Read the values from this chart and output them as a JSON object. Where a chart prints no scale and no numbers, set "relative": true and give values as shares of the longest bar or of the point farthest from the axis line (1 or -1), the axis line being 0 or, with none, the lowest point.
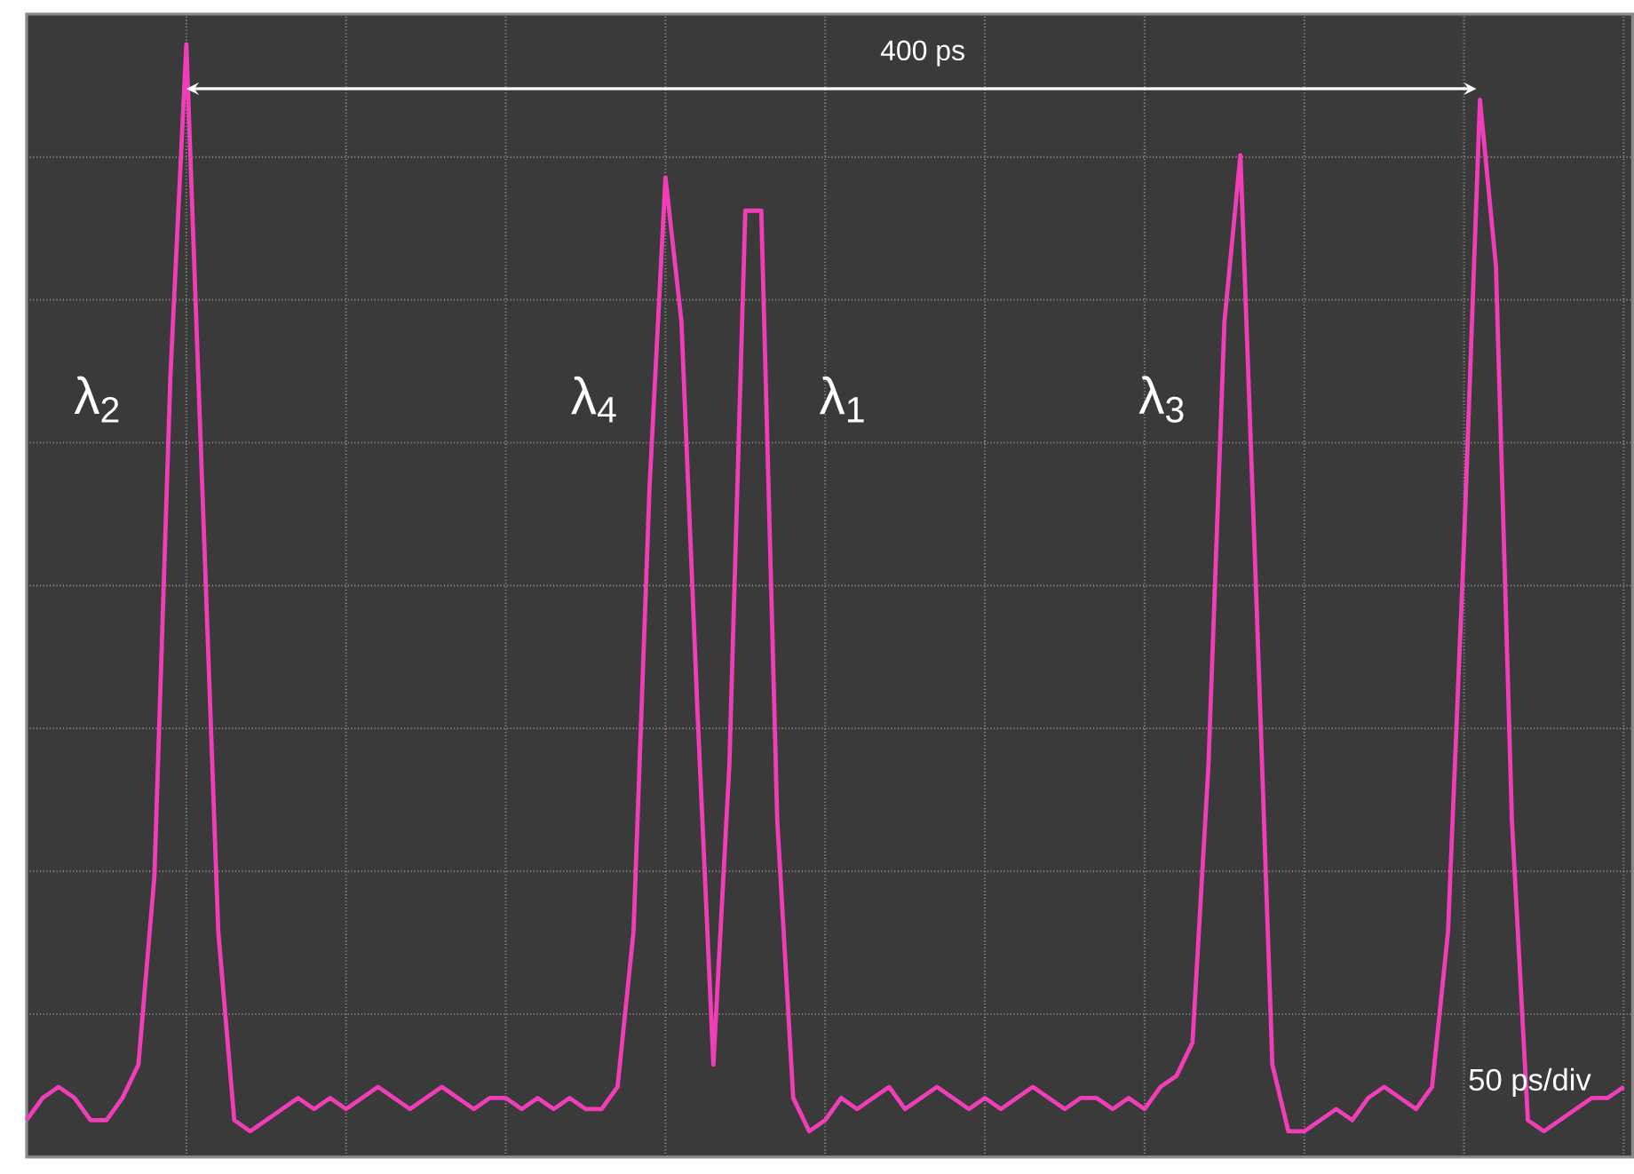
{
  "chart_data": {
    "type": "line",
    "relative": true,
    "categories": [
      null,
      null,
      null,
      null,
      null,
      null,
      null,
      null,
      null,
      null,
      null,
      null,
      null,
      null,
      null,
      null,
      null,
      null,
      null,
      null,
      null,
      null,
      null,
      null,
      null,
      null,
      null,
      null,
      null,
      null,
      null,
      null,
      null,
      null,
      null,
      null,
      null,
      null,
      null,
      null,
      null,
      null,
      null,
      null,
      null,
      null,
      null,
      null,
      null,
      null,
      null,
      null,
      null,
      null,
      null,
      null,
      null,
      null,
      null,
      null,
      null,
      null,
      null,
      null,
      null,
      null,
      null,
      null,
      null,
      null,
      null,
      null,
      null,
      null,
      null,
      null,
      null,
      null,
      null,
      null,
      null,
      null,
      null,
      null,
      null,
      null,
      null,
      null,
      null,
      null,
      null,
      null,
      null,
      null,
      null,
      null,
      null,
      null,
      null,
      null,
      null
    ],
    "series": [
      {
        "color": "#f23db8",
        "values": [
          0.03,
          0.05,
          0.06,
          0.05,
          0.03,
          0.03,
          0.05,
          0.08,
          0.25,
          0.7,
          1.0,
          0.6,
          0.2,
          0.03,
          0.02,
          0.03,
          0.04,
          0.05,
          0.04,
          0.05,
          0.04,
          0.05,
          0.06,
          0.05,
          0.04,
          0.05,
          0.06,
          0.05,
          0.04,
          0.05,
          0.05,
          0.04,
          0.05,
          0.04,
          0.05,
          0.04,
          0.04,
          0.06,
          0.2,
          0.6,
          0.88,
          0.75,
          0.4,
          0.08,
          0.35,
          0.85,
          0.85,
          0.3,
          0.05,
          0.02,
          0.03,
          0.05,
          0.04,
          0.05,
          0.06,
          0.04,
          0.05,
          0.06,
          0.05,
          0.04,
          0.05,
          0.04,
          0.05,
          0.06,
          0.05,
          0.04,
          0.05,
          0.05,
          0.04,
          0.05,
          0.04,
          0.06,
          0.07,
          0.1,
          0.35,
          0.75,
          0.9,
          0.5,
          0.08,
          0.02,
          0.02,
          0.03,
          0.04,
          0.03,
          0.05,
          0.06,
          0.05,
          0.04,
          0.06,
          0.2,
          0.55,
          0.95,
          0.8,
          0.3,
          0.03,
          0.02,
          0.03,
          0.04,
          0.05,
          0.05,
          0.06
        ]
      }
    ],
    "annotations": [
      "400 ps",
      "λ$_{2}$",
      "λ$_{4}$",
      "λ$_{1}$",
      "λ$_{3}$",
      "50 ps/div"
    ],
    "grid": true,
    "marker": "none",
    "line_style": "solid"
  }
}
